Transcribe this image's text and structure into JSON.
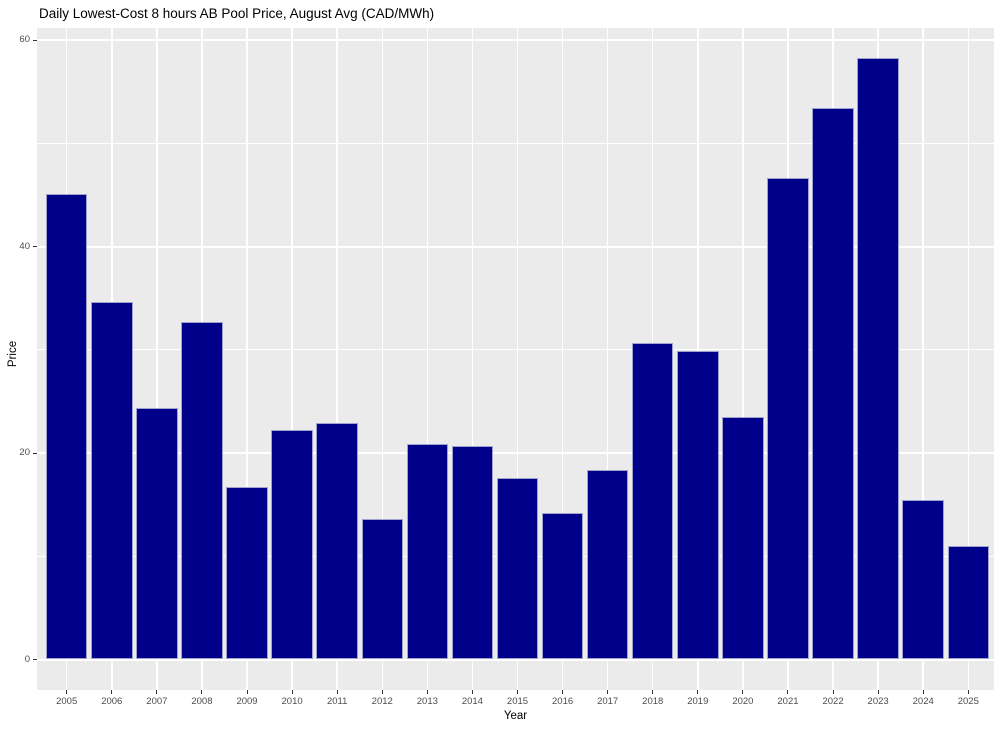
{
  "chart_data": {
    "type": "bar",
    "title": "Daily Lowest-Cost 8 hours AB Pool Price, August Avg (CAD/MWh)",
    "xlabel": "Year",
    "ylabel": "Price",
    "categories": [
      "2005",
      "2006",
      "2007",
      "2008",
      "2009",
      "2010",
      "2011",
      "2012",
      "2013",
      "2014",
      "2015",
      "2016",
      "2017",
      "2018",
      "2019",
      "2020",
      "2021",
      "2022",
      "2023",
      "2024",
      "2025"
    ],
    "values": [
      45.1,
      34.6,
      24.4,
      32.7,
      16.7,
      22.2,
      22.9,
      13.6,
      20.9,
      20.7,
      17.6,
      14.2,
      18.4,
      30.7,
      29.9,
      23.5,
      46.6,
      53.4,
      58.3,
      15.4,
      11.0
    ],
    "ylim": [
      0,
      60
    ],
    "yticks": [
      0,
      20,
      40,
      60
    ],
    "yminorticks": [
      10,
      30,
      50
    ],
    "grid": "on",
    "legend": "none",
    "colors": {
      "bar": "#00008B",
      "panel_background": "#EBEBEB",
      "gridline": "#FFFFFF",
      "tick_label": "#4D4D4D",
      "axis_title": "#000000",
      "title": "#000000",
      "figure_background": "#FFFFFF"
    }
  }
}
